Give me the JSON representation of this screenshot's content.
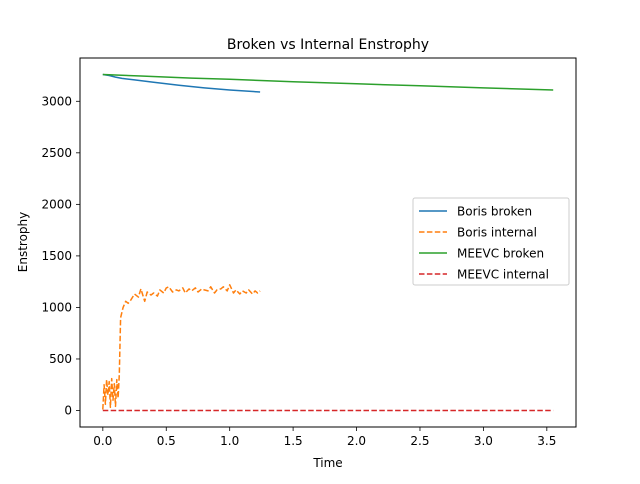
{
  "chart_data": {
    "type": "line",
    "title": "Broken vs Internal Enstrophy",
    "xlabel": "Time",
    "ylabel": "Enstrophy",
    "xlim": [
      -0.18,
      3.73
    ],
    "ylim": [
      -160,
      3420
    ],
    "xticks": [
      0.0,
      0.5,
      1.0,
      1.5,
      2.0,
      2.5,
      3.0,
      3.5
    ],
    "xtick_labels": [
      "0.0",
      "0.5",
      "1.0",
      "1.5",
      "2.0",
      "2.5",
      "3.0",
      "3.5"
    ],
    "yticks": [
      0,
      500,
      1000,
      1500,
      2000,
      2500,
      3000
    ],
    "ytick_labels": [
      "0",
      "500",
      "1000",
      "1500",
      "2000",
      "2500",
      "3000"
    ],
    "grid": false,
    "legend_position": "center-right",
    "series": [
      {
        "name": "Boris broken",
        "color": "#1f77b4",
        "dash": "solid",
        "x": [
          0.0,
          0.05,
          0.1,
          0.15,
          0.25,
          0.4,
          0.6,
          0.8,
          1.0,
          1.24
        ],
        "y": [
          3260,
          3250,
          3235,
          3222,
          3208,
          3185,
          3155,
          3130,
          3110,
          3090
        ]
      },
      {
        "name": "Boris internal",
        "color": "#ff7f0e",
        "dash": "dashed",
        "x": [
          0.0,
          0.01,
          0.02,
          0.03,
          0.04,
          0.05,
          0.06,
          0.07,
          0.08,
          0.09,
          0.1,
          0.11,
          0.12,
          0.13,
          0.14,
          0.16,
          0.18,
          0.2,
          0.22,
          0.25,
          0.28,
          0.3,
          0.33,
          0.35,
          0.38,
          0.4,
          0.43,
          0.45,
          0.48,
          0.5,
          0.52,
          0.55,
          0.58,
          0.6,
          0.63,
          0.65,
          0.68,
          0.7,
          0.73,
          0.75,
          0.78,
          0.8,
          0.83,
          0.85,
          0.88,
          0.9,
          0.93,
          0.95,
          0.98,
          1.0,
          1.03,
          1.05,
          1.08,
          1.1,
          1.13,
          1.15,
          1.18,
          1.2,
          1.22,
          1.24
        ],
        "y": [
          10,
          250,
          60,
          300,
          150,
          280,
          30,
          310,
          100,
          260,
          40,
          300,
          120,
          350,
          900,
          1000,
          1060,
          1040,
          1070,
          1130,
          1100,
          1180,
          1060,
          1150,
          1120,
          1140,
          1110,
          1170,
          1140,
          1190,
          1200,
          1150,
          1170,
          1160,
          1190,
          1140,
          1180,
          1160,
          1190,
          1150,
          1180,
          1170,
          1160,
          1200,
          1140,
          1170,
          1180,
          1200,
          1160,
          1220,
          1140,
          1170,
          1130,
          1160,
          1140,
          1170,
          1130,
          1160,
          1140,
          1160
        ]
      },
      {
        "name": "MEEVC broken",
        "color": "#2ca02c",
        "dash": "solid",
        "x": [
          0.0,
          0.3,
          0.7,
          1.0,
          1.5,
          2.0,
          2.5,
          3.0,
          3.55
        ],
        "y": [
          3260,
          3245,
          3225,
          3213,
          3190,
          3170,
          3150,
          3130,
          3110
        ]
      },
      {
        "name": "MEEVC internal",
        "color": "#d62728",
        "dash": "dashed",
        "x": [
          0.0,
          3.55
        ],
        "y": [
          0,
          0
        ]
      }
    ]
  }
}
